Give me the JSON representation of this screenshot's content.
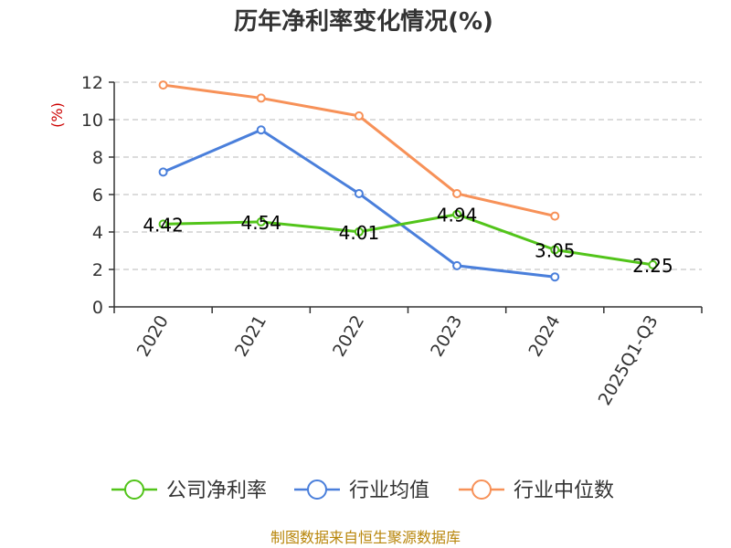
{
  "chart_data": {
    "type": "line",
    "title": "历年净利率变化情况(%)",
    "ylabel": "(%)",
    "xlabel": "",
    "categories": [
      "2020",
      "2021",
      "2022",
      "2023",
      "2024",
      "2025Q1-Q3"
    ],
    "ylim": [
      0,
      12
    ],
    "yticks": [
      0,
      2,
      4,
      6,
      8,
      10,
      12
    ],
    "grid": true,
    "legend_position": "bottom",
    "series": [
      {
        "name": "公司净利率",
        "color": "#52c41a",
        "values": [
          4.42,
          4.54,
          4.01,
          4.94,
          3.05,
          2.25
        ],
        "labels": [
          "4.42",
          "4.54",
          "4.01",
          "4.94",
          "3.05",
          "2.25"
        ]
      },
      {
        "name": "行业均值",
        "color": "#4a7fdb",
        "values": [
          7.2,
          9.45,
          6.05,
          2.2,
          1.6,
          null
        ]
      },
      {
        "name": "行业中位数",
        "color": "#f79158",
        "values": [
          11.85,
          11.15,
          10.2,
          6.05,
          4.85,
          null
        ]
      }
    ]
  },
  "source": "制图数据来自恒生聚源数据库"
}
